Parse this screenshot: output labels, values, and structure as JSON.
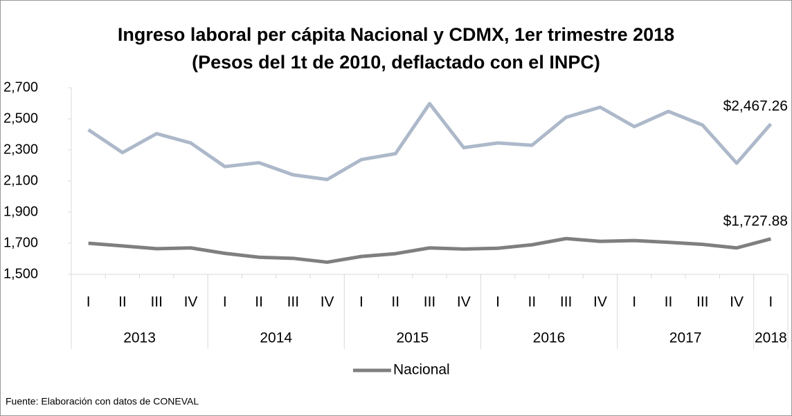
{
  "chart_data": {
    "type": "line",
    "title": "Ingreso laboral per cápita Nacional y CDMX, 1er trimestre 2018",
    "subtitle": "(Pesos del 1t de 2010, deflactado con el INPC)",
    "categories": [
      "I",
      "II",
      "III",
      "IV",
      "I",
      "II",
      "III",
      "IV",
      "I",
      "II",
      "III",
      "IV",
      "I",
      "II",
      "III",
      "IV",
      "I",
      "II",
      "III",
      "IV",
      "I"
    ],
    "years": [
      "2013",
      "2014",
      "2015",
      "2016",
      "2017",
      "2018"
    ],
    "series": [
      {
        "color": "#adb9ca",
        "values": [
          2430,
          2283,
          2405,
          2345,
          2193,
          2218,
          2140,
          2110,
          2238,
          2276,
          2598,
          2315,
          2345,
          2330,
          2510,
          2575,
          2450,
          2548,
          2460,
          2215,
          2467.26
        ],
        "value_labels": [
          null,
          null,
          null,
          null,
          null,
          null,
          null,
          null,
          null,
          null,
          null,
          null,
          null,
          null,
          null,
          null,
          null,
          null,
          null,
          null,
          "$2,467.26"
        ]
      },
      {
        "name": "Nacional",
        "color": "#7f7f7f",
        "values": [
          1700,
          1683,
          1665,
          1670,
          1635,
          1610,
          1603,
          1578,
          1615,
          1633,
          1670,
          1663,
          1668,
          1690,
          1730,
          1712,
          1717,
          1706,
          1693,
          1670,
          1727.88
        ],
        "value_labels": [
          null,
          null,
          null,
          null,
          null,
          null,
          null,
          null,
          null,
          null,
          null,
          null,
          null,
          null,
          null,
          null,
          null,
          null,
          null,
          null,
          "$1,727.88"
        ]
      }
    ],
    "ylim": [
      1500,
      2700
    ],
    "yticks": [
      {
        "value": 1500,
        "label": "1,500"
      },
      {
        "value": 1700,
        "label": "1,700"
      },
      {
        "value": 1900,
        "label": "1,900"
      },
      {
        "value": 2100,
        "label": "2,100"
      },
      {
        "value": 2300,
        "label": "2,300"
      },
      {
        "value": 2500,
        "label": "2,500"
      },
      {
        "value": 2700,
        "label": "2,700"
      }
    ],
    "legend": "bottom",
    "note": "Fuente: Elaboración con datos de CONEVAL"
  }
}
